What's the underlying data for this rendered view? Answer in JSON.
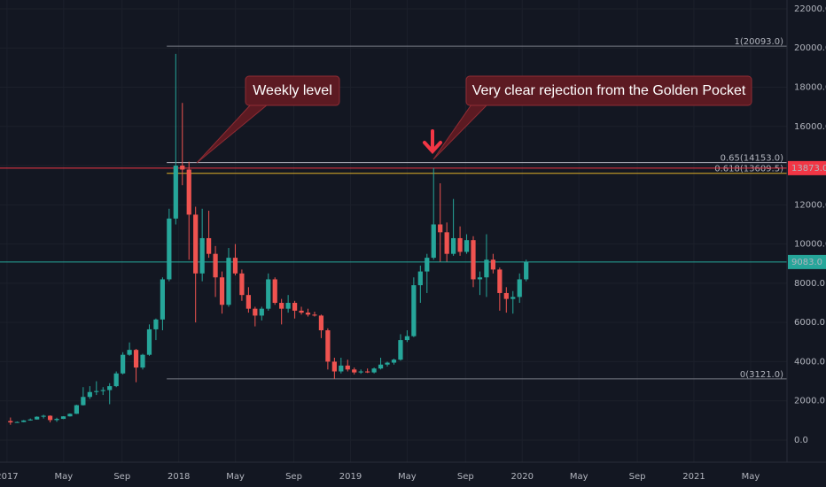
{
  "chart_data": {
    "type": "candlestick",
    "background": "#131722",
    "up_color": "#26a69a",
    "down_color": "#ef5350",
    "grid": true,
    "xlim": [
      2016.959,
      2021.542
    ],
    "ylim": [
      -1130,
      22450
    ],
    "xticks": [
      {
        "value": 2017,
        "label": "2017"
      },
      {
        "value": 2017.33,
        "label": "May"
      },
      {
        "value": 2017.67,
        "label": "Sep"
      },
      {
        "value": 2018,
        "label": "2018"
      },
      {
        "value": 2018.33,
        "label": "May"
      },
      {
        "value": 2018.67,
        "label": "Sep"
      },
      {
        "value": 2019,
        "label": "2019"
      },
      {
        "value": 2019.33,
        "label": "May"
      },
      {
        "value": 2019.67,
        "label": "Sep"
      },
      {
        "value": 2020,
        "label": "2020"
      },
      {
        "value": 2020.33,
        "label": "May"
      },
      {
        "value": 2020.67,
        "label": "Sep"
      },
      {
        "value": 2021,
        "label": "2021"
      },
      {
        "value": 2021.33,
        "label": "May"
      }
    ],
    "yticks": [
      {
        "value": 0,
        "label": "0.0"
      },
      {
        "value": 2000,
        "label": "2000.0"
      },
      {
        "value": 4000,
        "label": "4000.0"
      },
      {
        "value": 6000,
        "label": "6000.0"
      },
      {
        "value": 8000,
        "label": "8000.0"
      },
      {
        "value": 10000,
        "label": "10000.0"
      },
      {
        "value": 12000,
        "label": "12000.0"
      },
      {
        "value": 14000,
        "label": "14000.0"
      },
      {
        "value": 16000,
        "label": "16000.0"
      },
      {
        "value": 18000,
        "label": "18000.0"
      },
      {
        "value": 20000,
        "label": "20000.0"
      },
      {
        "value": 22000,
        "label": "22000.0"
      }
    ],
    "x": [
      2017.02,
      2017.0585,
      2017.097,
      2017.1355,
      2017.174,
      2017.2125,
      2017.251,
      2017.2895,
      2017.328,
      2017.3665,
      2017.405,
      2017.4435,
      2017.482,
      2017.5205,
      2017.559,
      2017.5975,
      2017.636,
      2017.6745,
      2017.713,
      2017.7515,
      2017.79,
      2017.8285,
      2017.867,
      2017.9055,
      2017.944,
      2017.9825,
      2018.021,
      2018.0595,
      2018.098,
      2018.1365,
      2018.175,
      2018.2135,
      2018.252,
      2018.2905,
      2018.329,
      2018.3675,
      2018.406,
      2018.4445,
      2018.483,
      2018.5215,
      2018.56,
      2018.5985,
      2018.637,
      2018.6755,
      2018.714,
      2018.7525,
      2018.791,
      2018.8295,
      2018.868,
      2018.9065,
      2018.945,
      2018.9835,
      2019.022,
      2019.0605,
      2019.099,
      2019.1375,
      2019.176,
      2019.2145,
      2019.253,
      2019.2915,
      2019.33,
      2019.3685,
      2019.407,
      2019.4455,
      2019.484,
      2019.5225,
      2019.561,
      2019.5995,
      2019.638,
      2019.6765,
      2019.715,
      2019.7535,
      2019.792,
      2019.8305,
      2019.869,
      2019.9075,
      2019.946,
      2019.9845,
      2020.023
    ],
    "open": [
      970,
      900,
      920,
      1000,
      1050,
      1190,
      1240,
      1020,
      1080,
      1210,
      1340,
      1780,
      2200,
      2450,
      2500,
      2550,
      2750,
      3400,
      4350,
      4600,
      3700,
      4350,
      5650,
      6150,
      8200,
      11300,
      14000,
      13800,
      11500,
      8500,
      10300,
      9500,
      8300,
      6900,
      9300,
      8500,
      7400,
      6700,
      6350,
      6700,
      8200,
      7000,
      6700,
      7000,
      6600,
      6500,
      6400,
      6350,
      5600,
      4000,
      3500,
      3800,
      3600,
      3450,
      3500,
      3450,
      3650,
      3850,
      3950,
      4100,
      5100,
      5300,
      7900,
      8600,
      9300,
      11000,
      10600,
      9500,
      10300,
      9600,
      10200,
      8200,
      8300,
      9200,
      8700,
      7500,
      7200,
      7300,
      8200
    ],
    "high": [
      1150,
      950,
      1020,
      1100,
      1210,
      1290,
      1260,
      1140,
      1220,
      1360,
      1800,
      2700,
      2750,
      3000,
      2700,
      2900,
      3500,
      4480,
      4980,
      4650,
      4400,
      5900,
      6200,
      8300,
      11800,
      19700,
      17200,
      14200,
      11900,
      11800,
      11700,
      9900,
      8600,
      9800,
      10000,
      8700,
      7800,
      6800,
      6800,
      8500,
      8300,
      7200,
      7400,
      7100,
      6800,
      6700,
      6550,
      6400,
      5700,
      4200,
      4200,
      4100,
      3700,
      3600,
      3650,
      3700,
      4200,
      4000,
      4150,
      5400,
      5600,
      8300,
      8900,
      9500,
      13880,
      13100,
      11100,
      12300,
      10900,
      10500,
      10400,
      8600,
      10500,
      9500,
      8800,
      7800,
      7600,
      8500,
      9200
    ],
    "low": [
      780,
      880,
      910,
      990,
      1040,
      1100,
      900,
      930,
      1070,
      1200,
      1330,
      1760,
      2100,
      2300,
      2300,
      1830,
      2700,
      3350,
      4300,
      2950,
      3600,
      4300,
      5100,
      5600,
      8100,
      11000,
      13000,
      9200,
      6000,
      8100,
      9300,
      7300,
      6450,
      6800,
      8400,
      7100,
      6500,
      5800,
      6100,
      6600,
      6900,
      5900,
      6500,
      6200,
      6400,
      6300,
      6300,
      5200,
      3600,
      3121,
      3400,
      3500,
      3350,
      3380,
      3420,
      3400,
      3600,
      3750,
      3850,
      4050,
      5000,
      5250,
      7000,
      7500,
      9200,
      9100,
      9100,
      9400,
      9400,
      9500,
      7800,
      7400,
      7300,
      8500,
      6600,
      6500,
      6450,
      7000,
      8100
    ],
    "close": [
      900,
      920,
      1000,
      1050,
      1190,
      1240,
      1020,
      1080,
      1210,
      1340,
      1780,
      2200,
      2450,
      2500,
      2550,
      2750,
      3400,
      4350,
      4600,
      3700,
      4350,
      5650,
      6150,
      8200,
      11300,
      14000,
      13800,
      11500,
      8500,
      10300,
      9500,
      8300,
      6900,
      9300,
      8500,
      7400,
      6700,
      6350,
      6700,
      8200,
      7000,
      6700,
      7000,
      6600,
      6500,
      6400,
      6350,
      5600,
      4000,
      3500,
      3800,
      3600,
      3450,
      3500,
      3450,
      3650,
      3850,
      3950,
      4100,
      5100,
      5300,
      7900,
      8600,
      9300,
      11000,
      10600,
      9500,
      10300,
      9600,
      10200,
      8200,
      8300,
      9200,
      8700,
      7500,
      7200,
      7300,
      8200,
      9083
    ],
    "levels": [
      {
        "label": "1(20093.0)",
        "value": 20093,
        "from": 2017.93,
        "color": "#787b86",
        "label_color": "#787b86"
      },
      {
        "label": "0.65(14153.0)",
        "value": 14153,
        "from": 2017.93,
        "color": "#b2b5be",
        "label_color": "#d49a2a"
      },
      {
        "label": "0.618(13609.5)",
        "value": 13609.5,
        "from": 2017.93,
        "color": "#e0b028",
        "label_color": "#e0b028"
      },
      {
        "label": "0(3121.0)",
        "value": 3121,
        "from": 2017.93,
        "color": "#787b86",
        "label_color": "#787b86"
      }
    ],
    "price_lines": [
      {
        "value": 13873,
        "label": "13873.0",
        "color": "#f23645"
      },
      {
        "value": 9083,
        "label": "9083.0",
        "color": "#26a69a"
      }
    ],
    "annotations": [
      "Weekly level",
      "Very clear rejection from the Golden Pocket"
    ]
  }
}
